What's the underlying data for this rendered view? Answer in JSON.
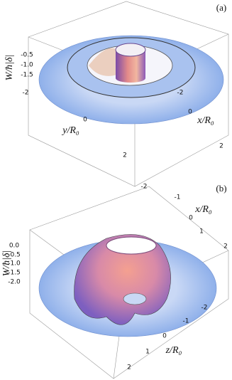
{
  "panels": [
    {
      "label": "(a)",
      "vertical_axis_label": "W/ħ|δ|",
      "vertical_ticks": [
        "-0.5",
        "-1.0",
        "-1.5"
      ],
      "left_axis_label": "y/R₀",
      "left_ticks": [
        "-2",
        "0",
        "2"
      ],
      "right_axis_label": "x/R₀",
      "right_ticks": [
        "-2",
        "0",
        "2"
      ]
    },
    {
      "label": "(b)",
      "vertical_axis_label": "W/ħ|δ|",
      "vertical_ticks": [
        "0.0",
        "-0.5",
        "-1.0",
        "-1.5",
        "-2.0"
      ],
      "top_axis_label": "x/R₀",
      "top_ticks": [
        "-2",
        "-1",
        "0",
        "1",
        "2"
      ],
      "bottom_axis_label": "z/R₀",
      "bottom_ticks": [
        "-2",
        "-1",
        "0",
        "1",
        "2"
      ]
    }
  ]
}
